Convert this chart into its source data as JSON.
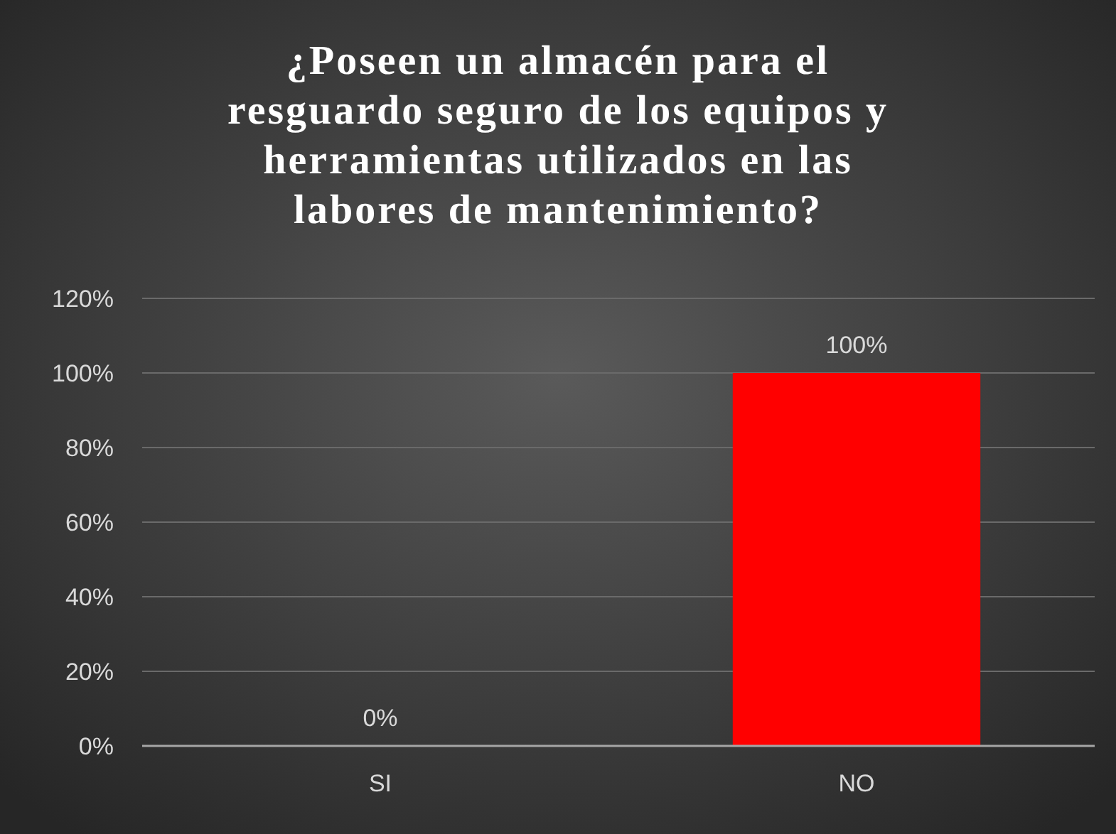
{
  "chart_data": {
    "type": "bar",
    "title": "¿Poseen un almacén para el resguardo seguro de los equipos y herramientas utilizados en las labores de mantenimiento?",
    "categories": [
      "SI",
      "NO"
    ],
    "values": [
      0,
      100
    ],
    "colors": [
      "#ff0000",
      "#ff0000"
    ],
    "value_labels": [
      "0%",
      "100%"
    ],
    "ylim": [
      0,
      120
    ],
    "yticks": [
      {
        "value": 0,
        "label": "0%"
      },
      {
        "value": 20,
        "label": "20%"
      },
      {
        "value": 40,
        "label": "40%"
      },
      {
        "value": 60,
        "label": "60%"
      },
      {
        "value": 80,
        "label": "80%"
      },
      {
        "value": 100,
        "label": "100%"
      },
      {
        "value": 120,
        "label": "120%"
      }
    ],
    "grid": "y"
  }
}
